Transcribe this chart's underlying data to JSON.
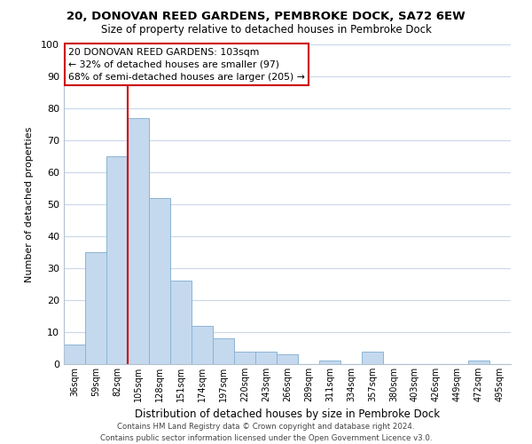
{
  "title": "20, DONOVAN REED GARDENS, PEMBROKE DOCK, SA72 6EW",
  "subtitle": "Size of property relative to detached houses in Pembroke Dock",
  "xlabel": "Distribution of detached houses by size in Pembroke Dock",
  "ylabel": "Number of detached properties",
  "bar_color": "#c5d9ee",
  "bar_edge_color": "#8ab4d4",
  "categories": [
    "36sqm",
    "59sqm",
    "82sqm",
    "105sqm",
    "128sqm",
    "151sqm",
    "174sqm",
    "197sqm",
    "220sqm",
    "243sqm",
    "266sqm",
    "289sqm",
    "311sqm",
    "334sqm",
    "357sqm",
    "380sqm",
    "403sqm",
    "426sqm",
    "449sqm",
    "472sqm",
    "495sqm"
  ],
  "values": [
    6,
    35,
    65,
    77,
    52,
    26,
    12,
    8,
    4,
    4,
    3,
    0,
    1,
    0,
    4,
    0,
    0,
    0,
    0,
    1,
    0
  ],
  "ylim": [
    0,
    100
  ],
  "yticks": [
    0,
    10,
    20,
    30,
    40,
    50,
    60,
    70,
    80,
    90,
    100
  ],
  "vline_color": "#cc0000",
  "vline_x_index": 3,
  "annotation_lines": [
    "20 DONOVAN REED GARDENS: 103sqm",
    "← 32% of detached houses are smaller (97)",
    "68% of semi-detached houses are larger (205) →"
  ],
  "footer_line1": "Contains HM Land Registry data © Crown copyright and database right 2024.",
  "footer_line2": "Contains public sector information licensed under the Open Government Licence v3.0.",
  "background_color": "#ffffff",
  "grid_color": "#c8d8e8"
}
